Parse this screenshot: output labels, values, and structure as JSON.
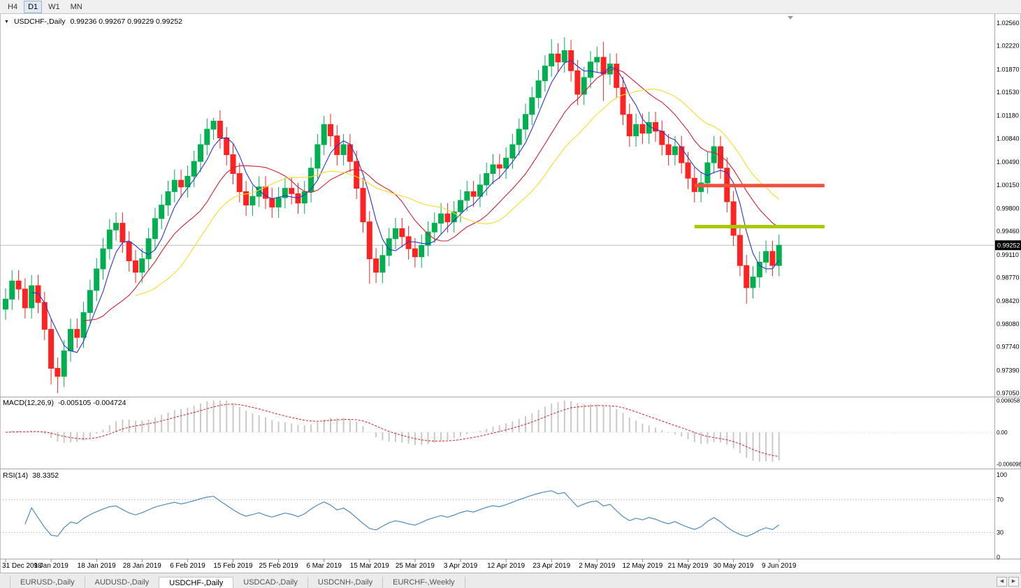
{
  "toolbar": {
    "timeframes": [
      {
        "label": "H4",
        "active": false
      },
      {
        "label": "D1",
        "active": true
      },
      {
        "label": "W1",
        "active": false
      },
      {
        "label": "MN",
        "active": false
      }
    ]
  },
  "icons": {
    "collapse_arrow": "▼",
    "scroll_left": "◀",
    "scroll_right": "▶"
  },
  "chart": {
    "symbol_title": "USDCHF-,Daily",
    "ohlc_label": "0.99236 0.99267 0.99229 0.99252",
    "current_price": "0.99252"
  },
  "price_axis": {
    "ticks": [
      "1.02560",
      "1.02220",
      "1.01870",
      "1.01530",
      "1.01180",
      "1.00840",
      "1.00490",
      "1.00150",
      "0.99800",
      "0.99460",
      "0.99110",
      "0.98770",
      "0.98420",
      "0.98080",
      "0.97740",
      "0.97390",
      "0.97050"
    ]
  },
  "indicators": {
    "macd": {
      "label": "MACD(12,26,9)",
      "values_label": "-0.005105 -0.004724",
      "axis_ticks": [
        "0.006058",
        "0.00",
        "-0.006096"
      ]
    },
    "rsi": {
      "label": "RSI(14)",
      "value_label": "38.3352",
      "axis_ticks": [
        "100",
        "70",
        "30",
        "0"
      ]
    }
  },
  "time_axis": {
    "labels": [
      {
        "index": 0,
        "text": "31 Dec 2018"
      },
      {
        "index": 7,
        "text": "9 Jan 2019"
      },
      {
        "index": 14,
        "text": "18 Jan 2019"
      },
      {
        "index": 21,
        "text": "28 Jan 2019"
      },
      {
        "index": 28,
        "text": "6 Feb 2019"
      },
      {
        "index": 35,
        "text": "15 Feb 2019"
      },
      {
        "index": 42,
        "text": "25 Feb 2019"
      },
      {
        "index": 49,
        "text": "6 Mar 2019"
      },
      {
        "index": 56,
        "text": "15 Mar 2019"
      },
      {
        "index": 63,
        "text": "25 Mar 2019"
      },
      {
        "index": 70,
        "text": "3 Apr 2019"
      },
      {
        "index": 77,
        "text": "12 Apr 2019"
      },
      {
        "index": 84,
        "text": "23 Apr 2019"
      },
      {
        "index": 91,
        "text": "2 May 2019"
      },
      {
        "index": 98,
        "text": "12 May 2019"
      },
      {
        "index": 105,
        "text": "21 May 2019"
      },
      {
        "index": 112,
        "text": "30 May 2019"
      },
      {
        "index": 119,
        "text": "9 Jun 2019"
      }
    ]
  },
  "tabs": {
    "items": [
      {
        "label": "EURUSD-,Daily",
        "active": false
      },
      {
        "label": "AUDUSD-,Daily",
        "active": false
      },
      {
        "label": "USDCHF-,Daily",
        "active": true
      },
      {
        "label": "USDCAD-,Daily",
        "active": false
      },
      {
        "label": "USDCNH-,Daily",
        "active": false
      },
      {
        "label": "EURCHF-,Weekly",
        "active": false
      }
    ]
  },
  "chart_data": {
    "type": "candlestick",
    "symbol": "USDCHF",
    "timeframe": "Daily",
    "axis_anchor": {
      "top_price": 1.0256,
      "bottom_price": 0.9705
    },
    "first_open": 0.983,
    "default_wick": 0.0016,
    "closes": [
      0.9845,
      0.9872,
      0.986,
      0.9832,
      0.9865,
      0.984,
      0.98,
      0.9742,
      0.973,
      0.9768,
      0.98,
      0.9788,
      0.9825,
      0.9858,
      0.989,
      0.992,
      0.9948,
      0.9958,
      0.993,
      0.9902,
      0.9885,
      0.9905,
      0.9935,
      0.9965,
      0.9985,
      1.0005,
      1.0022,
      1.0012,
      1.0028,
      1.005,
      1.0075,
      1.0098,
      1.011,
      1.0085,
      1.006,
      1.0032,
      1.0005,
      0.9985,
      0.9998,
      1.0012,
      0.9995,
      0.9982,
      0.9996,
      1.001,
      1.0002,
      0.9988,
      1.0005,
      1.004,
      1.0075,
      1.0105,
      1.0088,
      1.006,
      1.0075,
      1.005,
      1.001,
      0.996,
      0.9905,
      0.9885,
      0.991,
      0.9935,
      0.995,
      0.9938,
      0.992,
      0.9908,
      0.9925,
      0.9945,
      0.9958,
      0.9972,
      0.996,
      0.9975,
      0.9992,
      1.0005,
      0.9998,
      1.0015,
      1.0032,
      1.0045,
      1.004,
      1.0055,
      1.0075,
      1.0098,
      1.012,
      1.0145,
      1.017,
      1.0192,
      1.021,
      1.0198,
      1.0215,
      1.0185,
      1.015,
      1.0175,
      1.0198,
      1.0205,
      1.018,
      1.0195,
      1.016,
      1.012,
      1.0088,
      1.0105,
      1.0092,
      1.0108,
      1.0095,
      1.0075,
      1.006,
      1.0072,
      1.0048,
      1.0025,
      1.0005,
      1.0018,
      1.0048,
      1.0072,
      1.004,
      0.999,
      0.994,
      0.9895,
      0.9862,
      0.9878,
      0.99,
      0.9916,
      0.9895,
      0.99252
    ],
    "wick_overrides": {
      "7": {
        "low": 0.9718
      },
      "8": {
        "low": 0.9705
      },
      "32": {
        "high": 1.0115
      },
      "49": {
        "high": 1.0118
      },
      "56": {
        "low": 0.9868
      },
      "84": {
        "high": 1.0232
      },
      "86": {
        "high": 1.0235
      },
      "92": {
        "high": 1.0228,
        "low": 1.014
      },
      "114": {
        "low": 0.9838
      }
    },
    "moving_averages": [
      {
        "period": 5,
        "color": "#2a35c8"
      },
      {
        "period": 13,
        "color": "#cc2233"
      },
      {
        "period": 21,
        "color": "#f5dc28"
      }
    ],
    "levels": [
      {
        "name": "resistance",
        "price": 1.0014,
        "start_index": 106,
        "end_index": 126,
        "color": "#f0503c",
        "width": 5
      },
      {
        "name": "support",
        "price": 0.9953,
        "start_index": 106,
        "end_index": 126,
        "color": "#aac800",
        "width": 5
      }
    ],
    "colors": {
      "up": "#00b050",
      "down": "#ff2222",
      "macd_hist": "#c9c9c9",
      "macd_signal": "#cc2222",
      "rsi_line": "#4e8cbe",
      "current_price_line": "#bdbdbd",
      "grid": "#c8c8c8"
    },
    "macd": {
      "fast": 12,
      "slow": 26,
      "signal": 9,
      "axis_max": 0.0061,
      "axis_min": -0.0061
    },
    "rsi": {
      "period": 14,
      "levels": [
        70,
        30
      ],
      "axis_max": 100,
      "axis_min": 0
    }
  }
}
